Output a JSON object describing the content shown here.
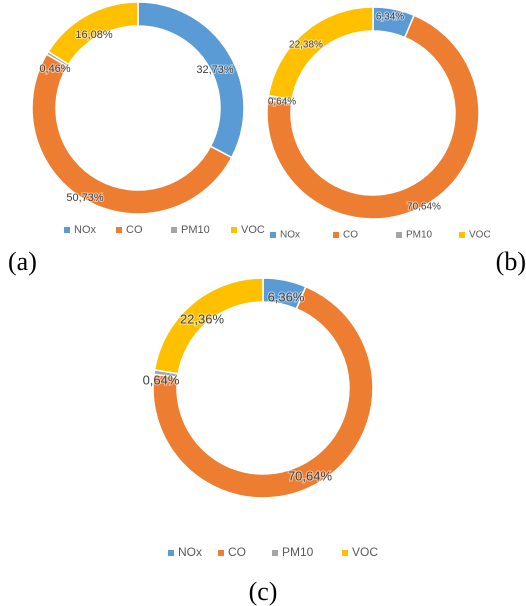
{
  "colors": {
    "NOx": "#5B9BD5",
    "CO": "#ED7D31",
    "PM10": "#A5A5A5",
    "VOC": "#FFC000"
  },
  "chart_data": [
    {
      "type": "pie",
      "panel_label": "(a)",
      "categories": [
        "NOx",
        "CO",
        "PM10",
        "VOC"
      ],
      "values": [
        32.73,
        50.73,
        0.46,
        16.08
      ],
      "labels": [
        "32,73%",
        "50,73%",
        "0,46%",
        "16,08%"
      ],
      "legend": [
        "NOx",
        "CO",
        "PM10",
        "VOC"
      ],
      "legend_position": "bottom"
    },
    {
      "type": "pie",
      "panel_label": "(b)",
      "categories": [
        "NOx",
        "CO",
        "PM10",
        "VOC"
      ],
      "values": [
        6.34,
        70.64,
        0.64,
        22.38
      ],
      "labels": [
        "6,34%",
        "70,64%",
        "0,64%",
        "22,38%"
      ],
      "legend": [
        "NOx",
        "CO",
        "PM10",
        "VOC"
      ],
      "legend_position": "bottom"
    },
    {
      "type": "pie",
      "panel_label": "(c)",
      "categories": [
        "NOx",
        "CO",
        "PM10",
        "VOC"
      ],
      "values": [
        6.36,
        70.64,
        0.64,
        22.36
      ],
      "labels": [
        "6,36%",
        "70,64%",
        "0,64%",
        "22,36%"
      ],
      "legend": [
        "NOx",
        "CO",
        "PM10",
        "VOC"
      ],
      "legend_position": "bottom"
    }
  ]
}
